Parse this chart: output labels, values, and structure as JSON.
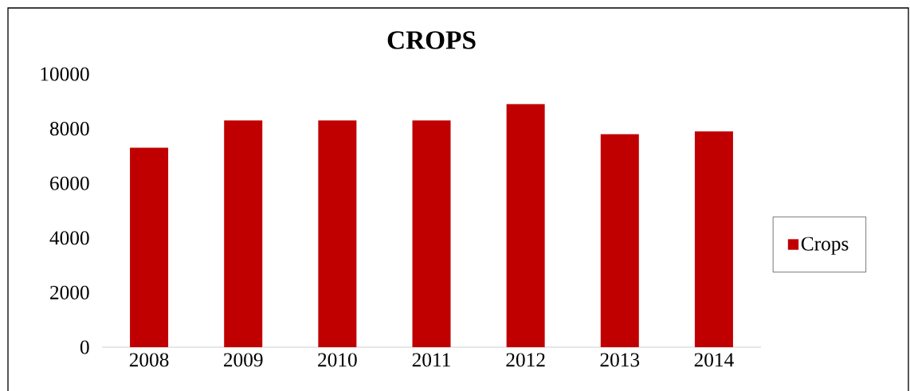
{
  "chart_data": {
    "type": "bar",
    "title": "CROPS",
    "categories": [
      "2008",
      "2009",
      "2010",
      "2011",
      "2012",
      "2013",
      "2014"
    ],
    "series": [
      {
        "name": "Crops",
        "color": "#c00000",
        "values": [
          7300,
          8300,
          8300,
          8300,
          8900,
          7800,
          7900
        ]
      }
    ],
    "ylim": [
      0,
      10000
    ],
    "yticks": [
      0,
      2000,
      4000,
      6000,
      8000,
      10000
    ],
    "legend": "right"
  }
}
